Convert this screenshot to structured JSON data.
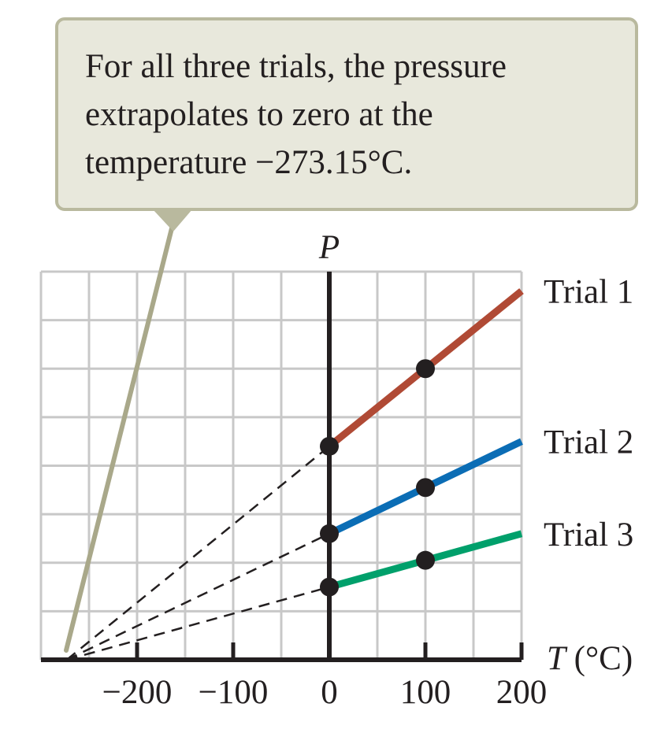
{
  "callout": {
    "lines": [
      "For all three trials, the pressure",
      "extrapolates to zero at the",
      "temperature −273.15°C."
    ]
  },
  "chart_data": {
    "type": "line",
    "ylabel_symbol": "P",
    "xlabel_symbol": "T",
    "xlabel_unit": "(°C)",
    "xlim": [
      -300,
      200
    ],
    "ylim": [
      0,
      8
    ],
    "grid": true,
    "x_ticks": [
      -200,
      -100,
      0,
      100,
      200
    ],
    "x_tick_labels": [
      "−200",
      "−100",
      "0",
      "100",
      "200"
    ],
    "absolute_zero": -273.15,
    "series": [
      {
        "name": "Trial 1",
        "color": "#b04a35",
        "points": [
          {
            "x": 0,
            "y": 4.4
          },
          {
            "x": 100,
            "y": 6.0
          }
        ],
        "line_x_range": [
          0,
          200
        ]
      },
      {
        "name": "Trial 2",
        "color": "#0b6db5",
        "points": [
          {
            "x": 0,
            "y": 2.6
          },
          {
            "x": 100,
            "y": 3.55
          }
        ],
        "line_x_range": [
          0,
          200
        ]
      },
      {
        "name": "Trial 3",
        "color": "#00a06b",
        "points": [
          {
            "x": 0,
            "y": 1.5
          },
          {
            "x": 100,
            "y": 2.05
          }
        ],
        "line_x_range": [
          0,
          200
        ]
      }
    ]
  }
}
